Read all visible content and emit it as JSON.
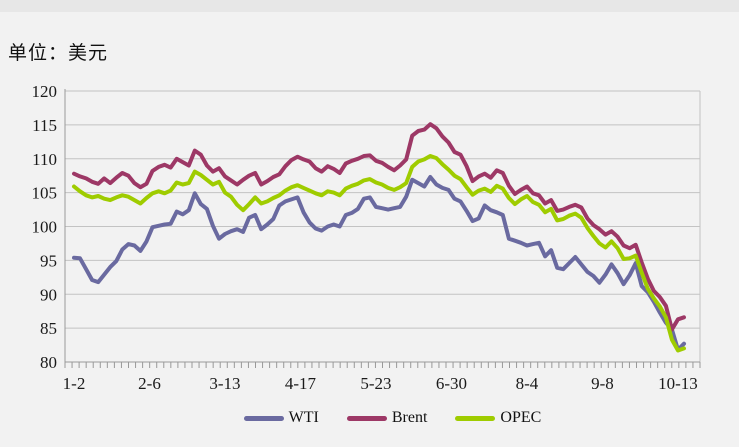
{
  "chart_data": {
    "type": "line",
    "title": "单位：美元",
    "xlabel": "",
    "ylabel": "",
    "ylim": [
      80,
      120
    ],
    "y_ticks": [
      80,
      85,
      90,
      95,
      100,
      105,
      110,
      115,
      120
    ],
    "x_tick_labels": [
      "1-2",
      "2-6",
      "3-13",
      "4-17",
      "5-23",
      "6-30",
      "8-4",
      "9-8",
      "10-13"
    ],
    "x_tick_days": [
      0,
      25,
      50,
      75,
      100,
      125,
      150,
      175,
      200
    ],
    "days_per_point": 2,
    "total_days": 202,
    "grid": true,
    "legend_position": "bottom",
    "colors": {
      "background": "#f2f2f2",
      "grid": "#c3c3c3",
      "axis": "#999999",
      "text": "#1a1a1a"
    },
    "series": [
      {
        "name": "WTI",
        "color": "#6A6AA0",
        "values": [
          95.4,
          95.3,
          93.7,
          92.1,
          91.8,
          92.9,
          94.0,
          94.9,
          96.6,
          97.4,
          97.2,
          96.4,
          97.8,
          99.9,
          100.1,
          100.3,
          100.4,
          102.2,
          101.8,
          102.4,
          104.9,
          103.3,
          102.6,
          100.1,
          98.2,
          98.9,
          99.3,
          99.6,
          99.2,
          101.3,
          101.7,
          99.6,
          100.3,
          101.1,
          103.1,
          103.7,
          104.0,
          104.3,
          102.1,
          100.6,
          99.7,
          99.4,
          100.0,
          100.3,
          100.0,
          101.7,
          102.0,
          102.6,
          104.1,
          104.3,
          102.9,
          102.7,
          102.5,
          102.7,
          102.9,
          104.4,
          106.9,
          106.4,
          105.9,
          107.3,
          106.2,
          105.7,
          105.4,
          104.1,
          103.7,
          102.3,
          100.8,
          101.2,
          103.1,
          102.4,
          102.1,
          101.7,
          98.2,
          97.9,
          97.6,
          97.2,
          97.4,
          97.6,
          95.6,
          96.5,
          93.9,
          93.7,
          94.6,
          95.5,
          94.4,
          93.3,
          92.7,
          91.7,
          92.9,
          94.4,
          93.1,
          91.5,
          92.8,
          94.6,
          91.2,
          90.3,
          88.9,
          87.3,
          85.8,
          84.8,
          81.8,
          82.7
        ]
      },
      {
        "name": "Brent",
        "color": "#9D3866",
        "values": [
          107.8,
          107.4,
          107.1,
          106.6,
          106.3,
          107.1,
          106.4,
          107.2,
          107.9,
          107.5,
          106.4,
          105.8,
          106.3,
          108.2,
          108.8,
          109.1,
          108.7,
          110.0,
          109.5,
          109.0,
          111.2,
          110.6,
          109.0,
          108.1,
          108.6,
          107.4,
          106.8,
          106.2,
          106.9,
          107.5,
          107.9,
          106.2,
          106.7,
          107.3,
          107.7,
          108.9,
          109.8,
          110.3,
          109.9,
          109.6,
          108.6,
          108.1,
          108.9,
          108.5,
          107.9,
          109.3,
          109.7,
          110.0,
          110.4,
          110.5,
          109.7,
          109.4,
          108.8,
          108.3,
          109.0,
          109.9,
          113.4,
          114.1,
          114.3,
          115.1,
          114.5,
          113.3,
          112.4,
          111.0,
          110.6,
          108.9,
          106.7,
          107.4,
          107.8,
          107.2,
          108.3,
          107.9,
          106.0,
          104.8,
          105.4,
          105.9,
          104.9,
          104.6,
          103.4,
          103.9,
          102.3,
          102.5,
          102.9,
          103.2,
          102.8,
          101.2,
          100.2,
          99.6,
          98.8,
          99.3,
          98.5,
          97.2,
          96.8,
          97.3,
          94.7,
          92.3,
          90.5,
          89.6,
          88.3,
          84.8,
          86.3,
          86.6
        ]
      },
      {
        "name": "OPEC",
        "color": "#9FCC00",
        "values": [
          105.9,
          105.2,
          104.6,
          104.3,
          104.5,
          104.1,
          103.9,
          104.3,
          104.6,
          104.4,
          103.9,
          103.4,
          104.2,
          104.9,
          105.2,
          104.9,
          105.3,
          106.5,
          106.2,
          106.4,
          108.1,
          107.6,
          106.9,
          106.2,
          106.6,
          105.0,
          104.4,
          103.2,
          102.4,
          103.3,
          104.3,
          103.4,
          103.7,
          104.2,
          104.6,
          105.3,
          105.8,
          106.1,
          105.7,
          105.3,
          104.9,
          104.6,
          105.2,
          105.0,
          104.6,
          105.6,
          106.0,
          106.3,
          106.8,
          107.0,
          106.5,
          106.2,
          105.7,
          105.4,
          105.8,
          106.4,
          108.8,
          109.6,
          109.9,
          110.4,
          110.1,
          109.2,
          108.4,
          107.5,
          107.0,
          105.8,
          104.7,
          105.3,
          105.6,
          105.1,
          106.0,
          105.6,
          104.2,
          103.3,
          104.0,
          104.5,
          103.6,
          103.2,
          102.1,
          102.6,
          100.9,
          101.1,
          101.6,
          101.9,
          101.3,
          99.8,
          98.6,
          97.5,
          96.9,
          97.8,
          96.8,
          95.2,
          95.3,
          95.7,
          93.2,
          90.8,
          89.4,
          88.2,
          86.6,
          83.3,
          81.7,
          82.0
        ]
      }
    ]
  }
}
